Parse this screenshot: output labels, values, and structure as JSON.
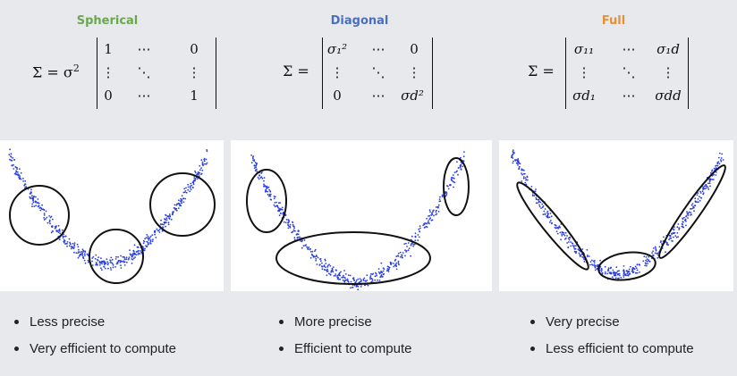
{
  "columns": [
    {
      "title": "Spherical",
      "title_color": "#6aa84f",
      "formula": {
        "lhs": "Σ = σ",
        "lhs_sup": "2",
        "cells": [
          [
            "1",
            "⋯",
            "0"
          ],
          [
            "⋮",
            "⋱",
            "⋮"
          ],
          [
            "0",
            "⋯",
            "1"
          ]
        ]
      },
      "bullets": [
        "Less precise",
        "Very efficient to compute"
      ]
    },
    {
      "title": "Diagonal",
      "title_color": "#4a6fc1",
      "formula": {
        "lhs": "Σ =",
        "cells": [
          [
            "σ₁²",
            "⋯",
            "0"
          ],
          [
            "⋮",
            "⋱",
            "⋮"
          ],
          [
            "0",
            "⋯",
            "σd²"
          ]
        ]
      },
      "bullets": [
        "More precise",
        "Efficient to compute"
      ]
    },
    {
      "title": "Full",
      "title_color": "#e69138",
      "formula": {
        "lhs": "Σ =",
        "cells": [
          [
            "σ₁₁",
            "⋯",
            "σ₁d"
          ],
          [
            "⋮",
            "⋱",
            "⋮"
          ],
          [
            "σd₁",
            "⋯",
            "σdd"
          ]
        ]
      },
      "bullets": [
        "Very precise",
        "Less efficient to compute"
      ]
    }
  ],
  "point_color": "#2a3fe0",
  "curve_color": "#111111"
}
